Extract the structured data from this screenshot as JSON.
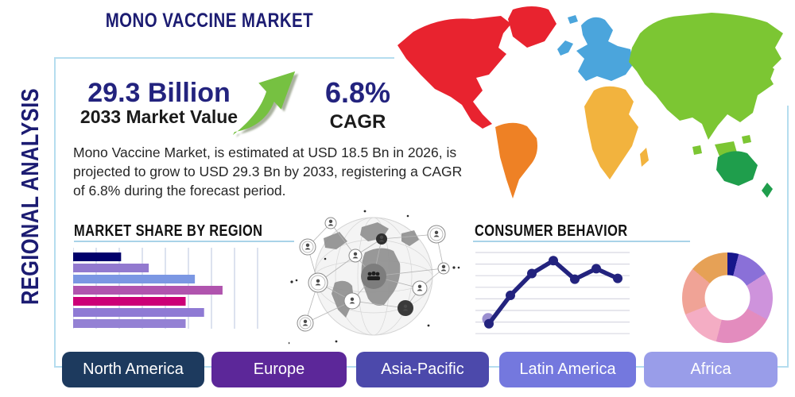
{
  "page_title": "MONO VACCINE MARKET",
  "side_label": "REGIONAL ANALYSIS",
  "stats": {
    "market_value": "29.3 Billion",
    "market_value_label": "2033 Market Value",
    "cagr_value": "6.8%",
    "cagr_label": "CAGR",
    "arrow_color": "#76c141"
  },
  "description": "Mono Vaccine Market, is estimated at USD 18.5 Bn in 2026, is projected to grow to USD 29.3 Bn by 2033, registering a CAGR of 6.8% during the forecast period.",
  "colors": {
    "navy_text": "#1c1c72",
    "card_border": "#b5ddef",
    "heading_underline": "#a9d3e8"
  },
  "chart_data": [
    {
      "type": "bar",
      "title": "MARKET SHARE BY REGION",
      "orientation": "horizontal",
      "categories": [
        "bar-1",
        "bar-2",
        "bar-3",
        "bar-4",
        "bar-5",
        "bar-6",
        "bar-7"
      ],
      "values": [
        26,
        41,
        66,
        81,
        61,
        71,
        61
      ],
      "value_scale": "relative 0-100 of axis width (no numeric labels shown)",
      "bar_colors": [
        "#00006b",
        "#9279cf",
        "#7b97e3",
        "#b054ae",
        "#cc0077",
        "#8f7ad4",
        "#9481d4"
      ],
      "grid": "vertical light lines",
      "grid_color": "#ccd6e8"
    },
    {
      "type": "line",
      "title": "CONSUMER BEHAVIOR",
      "x": [
        1,
        2,
        3,
        4,
        5,
        6,
        7
      ],
      "values": [
        12,
        47,
        74,
        90,
        67,
        80,
        68
      ],
      "value_scale": "relative 0-100 (no numeric labels shown)",
      "line_color": "#23237e",
      "marker": "round dots",
      "start_highlight_color": "#9b8fd0",
      "grid": "horizontal light lines",
      "grid_color": "#d8d8e2"
    },
    {
      "type": "pie",
      "subtype": "donut",
      "title": "",
      "slices": [
        {
          "color": "#16168c",
          "percent": 4
        },
        {
          "color": "#8a70d8",
          "percent": 12
        },
        {
          "color": "#ce93dc",
          "percent": 17
        },
        {
          "color": "#e38cbe",
          "percent": 21
        },
        {
          "color": "#f4adc4",
          "percent": 15
        },
        {
          "color": "#f0a396",
          "percent": 17
        },
        {
          "color": "#e6a156",
          "percent": 14
        }
      ]
    }
  ],
  "sections": {
    "market_share_title": "MARKET SHARE BY REGION",
    "consumer_behavior_title": "CONSUMER BEHAVIOR"
  },
  "buttons": [
    {
      "label": "North America",
      "color": "#1d3a5e"
    },
    {
      "label": "Europe",
      "color": "#5c2799"
    },
    {
      "label": "Asia-Pacific",
      "color": "#4c49ab"
    },
    {
      "label": "Latin America",
      "color": "#7478de"
    },
    {
      "label": "Africa",
      "color": "#999de9"
    }
  ],
  "map_regions": [
    {
      "name": "North America",
      "color": "#e8232f"
    },
    {
      "name": "Greenland",
      "color": "#e8232f"
    },
    {
      "name": "South America",
      "color": "#ee8125"
    },
    {
      "name": "Europe",
      "color": "#4ba5dc"
    },
    {
      "name": "Africa",
      "color": "#f2b33e"
    },
    {
      "name": "Asia",
      "color": "#7cc633"
    },
    {
      "name": "Australia",
      "color": "#1f9e4c"
    }
  ]
}
